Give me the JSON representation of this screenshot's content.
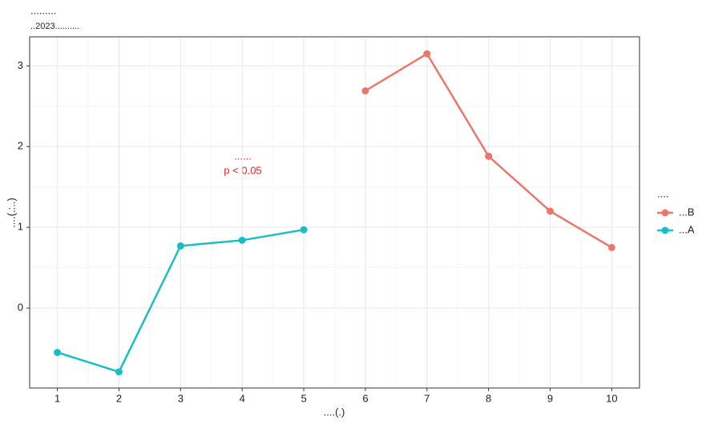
{
  "chart_data": {
    "type": "line",
    "title": ".........",
    "subtitle": "..2023..........",
    "x_label": "....(.)",
    "y_label": "....(.:..)",
    "legend_title": "....",
    "annotations": [
      "......",
      "p < 0.05"
    ],
    "x": [
      1,
      2,
      3,
      4,
      5,
      6,
      7,
      8,
      9,
      10
    ],
    "series": [
      {
        "name": "...B",
        "color": "#ec7669",
        "values": [
          null,
          null,
          null,
          null,
          null,
          2.69,
          3.15,
          1.88,
          1.2,
          0.75
        ]
      },
      {
        "name": "...A",
        "color": "#17bfc4",
        "values": [
          -0.55,
          -0.79,
          0.77,
          0.84,
          0.97,
          null,
          null,
          null,
          null,
          null
        ]
      }
    ],
    "xlim": [
      0.55,
      10.45
    ],
    "ylim": [
      -0.99,
      3.36
    ],
    "xticks": [
      1,
      2,
      3,
      4,
      5,
      6,
      7,
      8,
      9,
      10
    ],
    "yticks": [
      0,
      1,
      2,
      3
    ],
    "grid": true,
    "legend": "right"
  }
}
